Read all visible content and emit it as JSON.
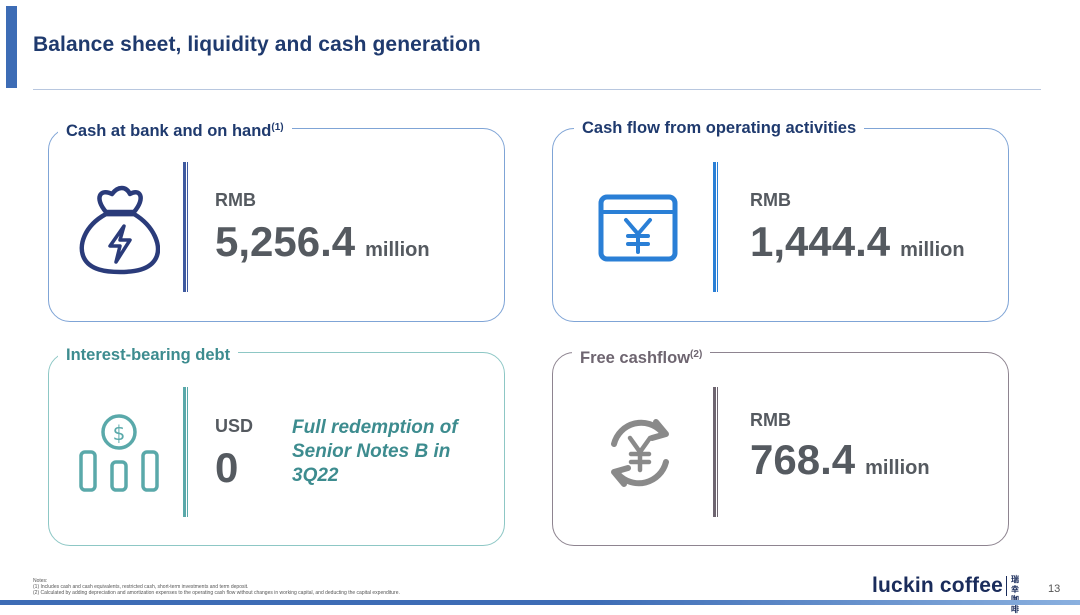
{
  "header": {
    "title": "Balance sheet, liquidity and cash generation"
  },
  "cards": {
    "cash": {
      "label": "Cash at bank and on hand",
      "note_ref": "(1)",
      "currency": "RMB",
      "amount": "5,256.4",
      "unit": "million",
      "icon": "money-bag-icon"
    },
    "operating": {
      "label": "Cash flow from operating activities",
      "currency": "RMB",
      "amount": "1,444.4",
      "unit": "million",
      "icon": "yen-window-icon"
    },
    "debt": {
      "label": "Interest-bearing debt",
      "currency": "USD",
      "amount": "0",
      "redemption_text": "Full redemption of Senior Notes B in 3Q22",
      "icon": "coin-bars-icon"
    },
    "fcf": {
      "label": "Free cashflow",
      "note_ref": "(2)",
      "currency": "RMB",
      "amount": "768.4",
      "unit": "million",
      "icon": "yen-cycle-icon"
    }
  },
  "footer": {
    "notes_heading": "Notes:",
    "note1": "(1) Includes cash and cash equivalents, restricted cash, short-term investments and term deposit.",
    "note2": "(2) Calculated by adding depreciation and amortization expenses to the operating cash flow without changes in working capital, and deducting the capital expenditure.",
    "logo": "luckin coffee",
    "logo_cn": "瑞幸咖啡",
    "page_number": "13"
  },
  "colors": {
    "title": "#1f3a6e",
    "accent": "#3d6cb5",
    "teal": "#3d8c8f",
    "grey": "#6e6570",
    "bright_blue": "#2a7fd6"
  }
}
